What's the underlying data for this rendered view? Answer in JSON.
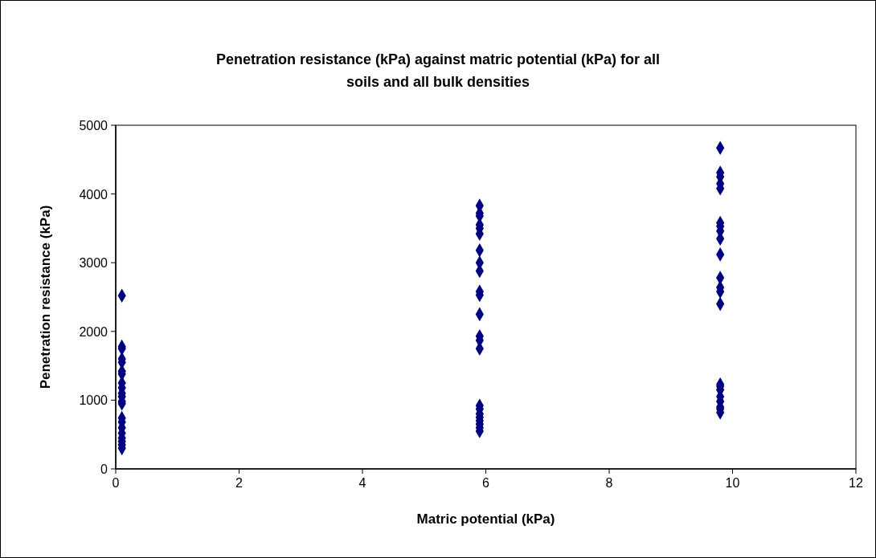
{
  "chart_data": {
    "type": "scatter",
    "title": "Penetration resistance (kPa) against matric potential (kPa) for all soils and all bulk densities",
    "xlabel": "Matric potential (kPa)",
    "ylabel": "Penetration resistance (kPa)",
    "series": [
      {
        "color": "#000080",
        "x": [
          0.1,
          0.1,
          0.1,
          0.1,
          0.1,
          0.1,
          0.1,
          0.1,
          0.1,
          0.1,
          0.1,
          0.1,
          0.1,
          0.1,
          0.1,
          0.1,
          0.1,
          0.1,
          0.1,
          0.1,
          0.1,
          5.9,
          5.9,
          5.9,
          5.9,
          5.9,
          5.9,
          5.9,
          5.9,
          5.9,
          5.9,
          5.9,
          5.9,
          5.9,
          5.9,
          5.9,
          5.9,
          5.9,
          5.9,
          5.9,
          5.9,
          5.9,
          5.9,
          5.9,
          9.8,
          9.8,
          9.8,
          9.8,
          9.8,
          9.8,
          9.8,
          9.8,
          9.8,
          9.8,
          9.8,
          9.8,
          9.8,
          9.8,
          9.8,
          9.8,
          9.8,
          9.8,
          9.8,
          9.8,
          9.8,
          9.8
        ],
        "values": [
          2520,
          1780,
          1750,
          1600,
          1550,
          1420,
          1380,
          1250,
          1180,
          1100,
          1050,
          980,
          950,
          740,
          680,
          600,
          520,
          450,
          400,
          350,
          300,
          3830,
          3720,
          3680,
          3550,
          3500,
          3420,
          3180,
          3000,
          2880,
          2580,
          2530,
          2250,
          1930,
          1870,
          1750,
          920,
          870,
          800,
          750,
          700,
          650,
          600,
          550,
          4670,
          4310,
          4250,
          4150,
          4080,
          3580,
          3530,
          3460,
          3350,
          3120,
          2780,
          2640,
          2580,
          2400,
          1230,
          1200,
          1150,
          1050,
          980,
          900,
          870,
          820
        ]
      }
    ],
    "xlim": [
      0,
      12
    ],
    "xticks": [
      0,
      2,
      4,
      6,
      8,
      10,
      12
    ],
    "ylim": [
      0,
      5000
    ],
    "yticks": [
      0,
      1000,
      2000,
      3000,
      4000,
      5000
    ],
    "marker": "diamond",
    "grid": false
  }
}
